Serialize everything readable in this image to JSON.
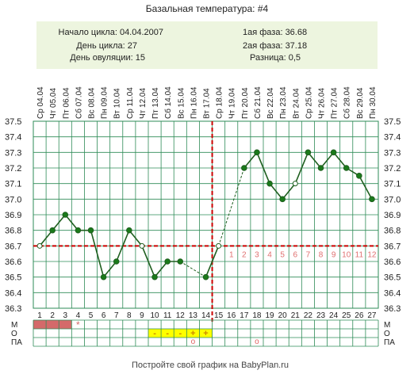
{
  "chart_data": {
    "type": "line",
    "title": "Базальная температура: #4",
    "info": {
      "left": [
        "Начало цикла: 04.04.2007",
        "День цикла: 27",
        "День овуляции: 15"
      ],
      "right": [
        "1ая фаза: 36.68",
        "2ая фаза: 37.18",
        "Разница: 0,5"
      ]
    },
    "x": [
      1,
      2,
      3,
      4,
      5,
      6,
      7,
      8,
      9,
      10,
      11,
      12,
      13,
      14,
      15,
      16,
      17,
      18,
      19,
      20,
      21,
      22,
      23,
      24,
      25,
      26,
      27
    ],
    "dates": [
      "Ср 04.04",
      "Чт 05.04",
      "Пт 06.04",
      "Сб 07.04",
      "Вс 08.04",
      "Пн 09.04",
      "Вт 10.04",
      "Ср 11.04",
      "Чт 12.04",
      "Пт 13.04",
      "Сб 14.04",
      "Вс 15.04",
      "Пн 16.04",
      "Вт 17.04",
      "Ср 18.04",
      "Чт 19.04",
      "Пт 20.04",
      "Сб 21.04",
      "Вс 22.04",
      "Пн 23.04",
      "Вт 24.04",
      "Ср 25.04",
      "Чт 26.04",
      "Пт 27.04",
      "Сб 28.04",
      "Вс 29.04",
      "Пн 30.04"
    ],
    "y_ticks": [
      "36.3",
      "36.4",
      "36.5",
      "36.6",
      "36.7",
      "36.8",
      "36.9",
      "37.0",
      "37.1",
      "37.2",
      "37.3",
      "37.4",
      "37.5"
    ],
    "ylim": [
      36.3,
      37.5
    ],
    "series": [
      {
        "values": [
          36.7,
          36.8,
          36.9,
          36.8,
          36.8,
          36.5,
          36.6,
          36.8,
          36.7,
          36.5,
          36.6,
          36.6,
          null,
          36.5,
          36.7,
          null,
          37.2,
          37.3,
          37.1,
          37.0,
          37.1,
          37.3,
          37.2,
          37.3,
          37.2,
          37.15,
          37.0
        ]
      }
    ],
    "open_points": [
      1,
      9,
      15,
      21
    ],
    "cover_line": 36.7,
    "ovulation_day": 15,
    "phase2_labels": [
      "1",
      "2",
      "3",
      "4",
      "5",
      "6",
      "7",
      "8",
      "9",
      "10",
      "11",
      "12"
    ],
    "moon_day": 18,
    "row_labels": [
      "М",
      "О",
      "ПА"
    ],
    "m_marks": {
      "bar_days": [
        1,
        2,
        3
      ],
      "star_day": 4,
      "star": "*"
    },
    "o_marks": [
      {
        "day": 10,
        "text": "-"
      },
      {
        "day": 11,
        "text": "-"
      },
      {
        "day": 12,
        "text": "-"
      },
      {
        "day": 13,
        "text": "+"
      },
      {
        "day": 14,
        "text": "+"
      }
    ],
    "pa_marks": [
      {
        "day": 13,
        "text": "o"
      },
      {
        "day": 18,
        "text": "o"
      }
    ],
    "colors": {
      "line": "#1f5f1f",
      "dot": "#1a7a1a",
      "cover": "#cc0000",
      "grid": "#2e8b57",
      "info_bg": "#edf5df",
      "menses": "#d46a6a",
      "o_bg": "#ffff00",
      "pa_mark": "#e06060",
      "phase_label": "#e07070"
    },
    "footer": "Постройте свой график на BabyPlan.ru"
  }
}
